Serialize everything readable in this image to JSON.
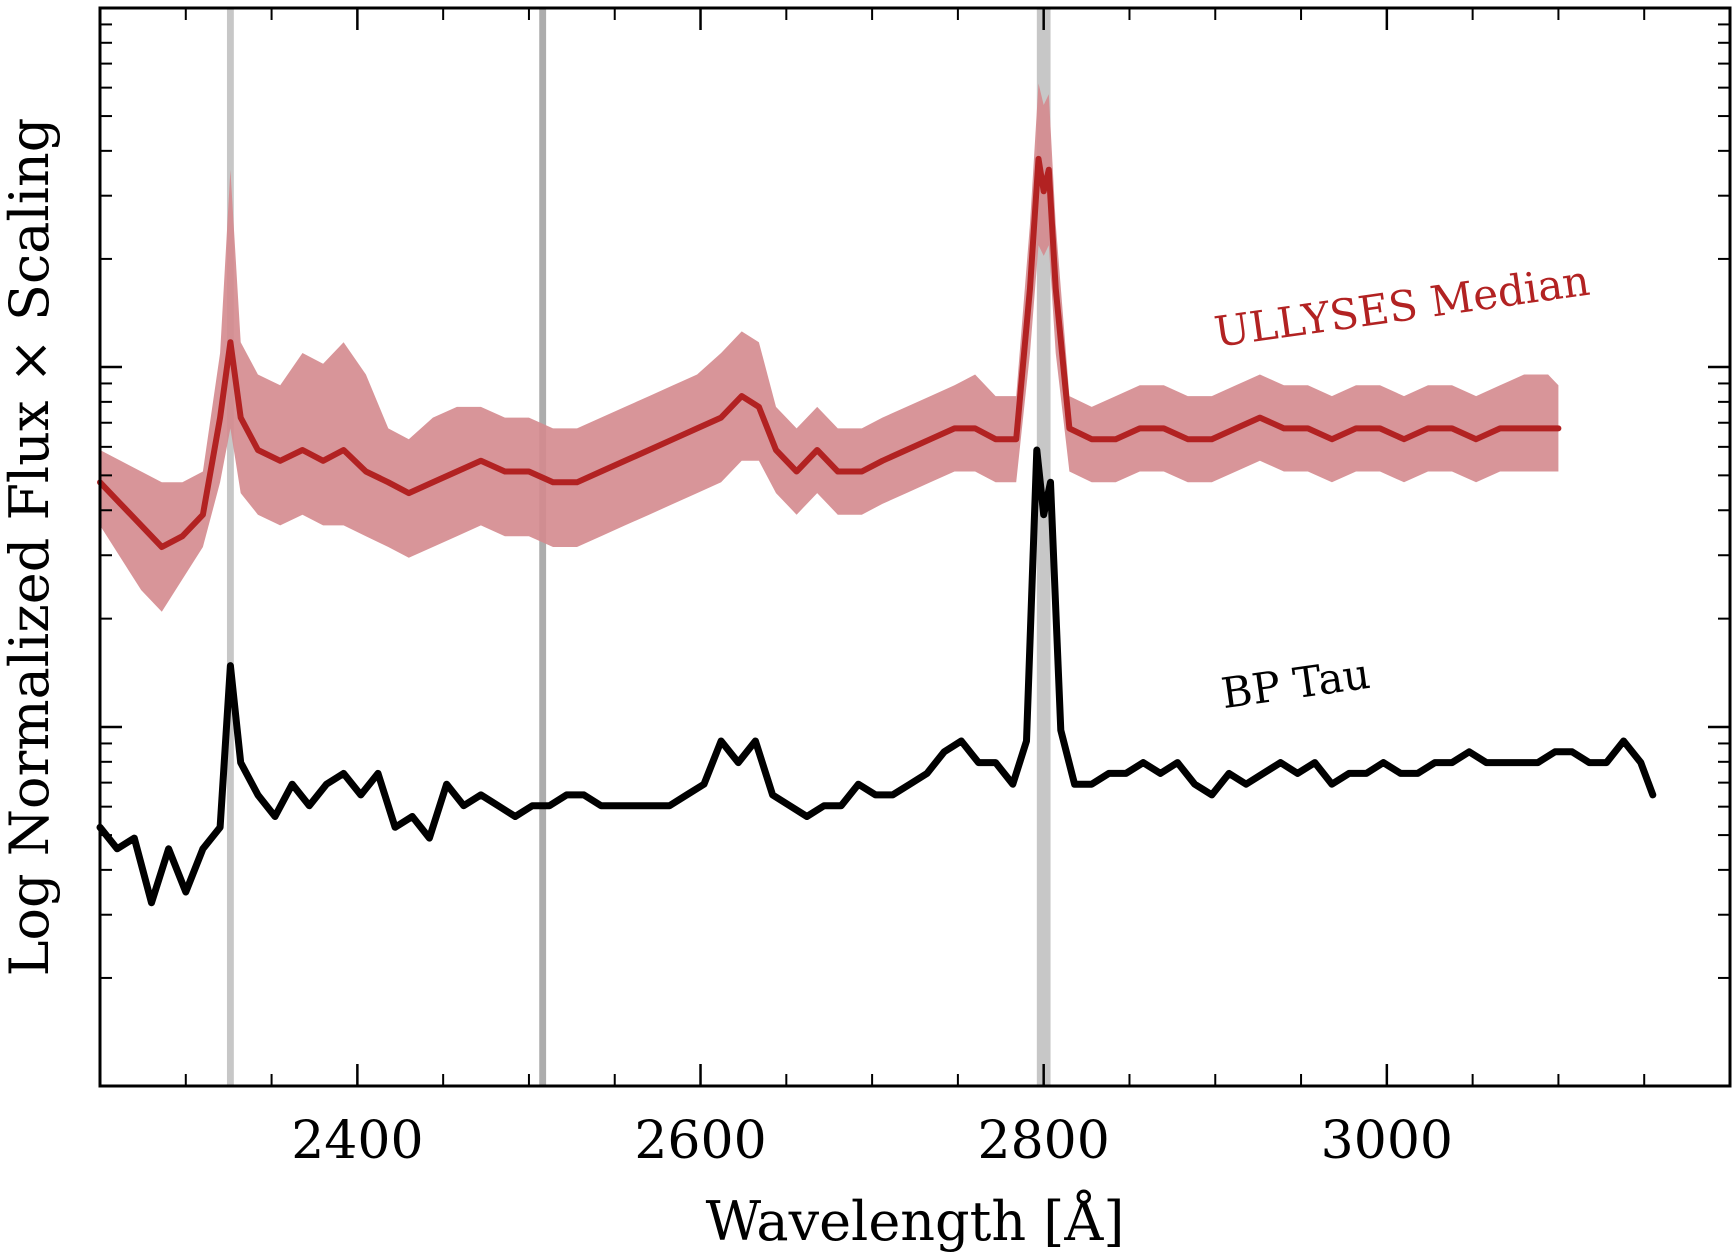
{
  "chart_data": {
    "type": "line",
    "xlabel": "Wavelength [Å]",
    "ylabel": "Log Normalized Flux × Scaling",
    "xlim": [
      2250,
      3200
    ],
    "ylim": [
      0,
      10
    ],
    "y_scale": "log",
    "y_tick_labels": "none",
    "x_ticks": [
      2400,
      2600,
      2800,
      3000
    ],
    "x_tick_labels": [
      "2400",
      "2600",
      "2800",
      "3000"
    ],
    "grid": false,
    "vertical_bands": [
      {
        "x_min": 2324,
        "x_max": 2328,
        "color": "#bdbdbd"
      },
      {
        "x_min": 2506,
        "x_max": 2510,
        "color": "#9e9e9e"
      },
      {
        "x_min": 2796,
        "x_max": 2804,
        "color": "#bdbdbd"
      }
    ],
    "series": [
      {
        "name": "ULLYSES Median",
        "color": "#b22222",
        "band_color": "#d48a8e",
        "points": [
          [
            2250,
            5.6
          ],
          [
            2262,
            5.4
          ],
          [
            2274,
            5.2
          ],
          [
            2286,
            5.0
          ],
          [
            2298,
            5.1
          ],
          [
            2310,
            5.3
          ],
          [
            2320,
            6.2
          ],
          [
            2326,
            6.9
          ],
          [
            2332,
            6.2
          ],
          [
            2342,
            5.9
          ],
          [
            2355,
            5.8
          ],
          [
            2368,
            5.9
          ],
          [
            2380,
            5.8
          ],
          [
            2392,
            5.9
          ],
          [
            2405,
            5.7
          ],
          [
            2418,
            5.6
          ],
          [
            2430,
            5.5
          ],
          [
            2444,
            5.6
          ],
          [
            2458,
            5.7
          ],
          [
            2472,
            5.8
          ],
          [
            2486,
            5.7
          ],
          [
            2500,
            5.7
          ],
          [
            2514,
            5.6
          ],
          [
            2528,
            5.6
          ],
          [
            2542,
            5.7
          ],
          [
            2556,
            5.8
          ],
          [
            2570,
            5.9
          ],
          [
            2584,
            6.0
          ],
          [
            2598,
            6.1
          ],
          [
            2612,
            6.2
          ],
          [
            2624,
            6.4
          ],
          [
            2634,
            6.3
          ],
          [
            2644,
            5.9
          ],
          [
            2656,
            5.7
          ],
          [
            2668,
            5.9
          ],
          [
            2680,
            5.7
          ],
          [
            2694,
            5.7
          ],
          [
            2706,
            5.8
          ],
          [
            2720,
            5.9
          ],
          [
            2734,
            6.0
          ],
          [
            2748,
            6.1
          ],
          [
            2760,
            6.1
          ],
          [
            2772,
            6.0
          ],
          [
            2784,
            6.0
          ],
          [
            2792,
            7.4
          ],
          [
            2797,
            8.6
          ],
          [
            2800,
            8.3
          ],
          [
            2803,
            8.5
          ],
          [
            2807,
            7.4
          ],
          [
            2815,
            6.1
          ],
          [
            2828,
            6.0
          ],
          [
            2842,
            6.0
          ],
          [
            2856,
            6.1
          ],
          [
            2870,
            6.1
          ],
          [
            2884,
            6.0
          ],
          [
            2898,
            6.0
          ],
          [
            2912,
            6.1
          ],
          [
            2926,
            6.2
          ],
          [
            2940,
            6.1
          ],
          [
            2954,
            6.1
          ],
          [
            2968,
            6.0
          ],
          [
            2982,
            6.1
          ],
          [
            2996,
            6.1
          ],
          [
            3010,
            6.0
          ],
          [
            3024,
            6.1
          ],
          [
            3038,
            6.1
          ],
          [
            3052,
            6.0
          ],
          [
            3066,
            6.1
          ],
          [
            3080,
            6.1
          ],
          [
            3094,
            6.1
          ],
          [
            3100,
            6.1
          ]
        ],
        "band_lower": [
          [
            2250,
            5.2
          ],
          [
            2262,
            4.9
          ],
          [
            2274,
            4.6
          ],
          [
            2286,
            4.4
          ],
          [
            2298,
            4.7
          ],
          [
            2310,
            5.0
          ],
          [
            2320,
            5.6
          ],
          [
            2326,
            6.1
          ],
          [
            2332,
            5.5
          ],
          [
            2342,
            5.3
          ],
          [
            2355,
            5.2
          ],
          [
            2368,
            5.3
          ],
          [
            2380,
            5.2
          ],
          [
            2392,
            5.2
          ],
          [
            2405,
            5.1
          ],
          [
            2418,
            5.0
          ],
          [
            2430,
            4.9
          ],
          [
            2444,
            5.0
          ],
          [
            2458,
            5.1
          ],
          [
            2472,
            5.2
          ],
          [
            2486,
            5.1
          ],
          [
            2500,
            5.1
          ],
          [
            2514,
            5.0
          ],
          [
            2528,
            5.0
          ],
          [
            2542,
            5.1
          ],
          [
            2556,
            5.2
          ],
          [
            2570,
            5.3
          ],
          [
            2584,
            5.4
          ],
          [
            2598,
            5.5
          ],
          [
            2612,
            5.6
          ],
          [
            2624,
            5.8
          ],
          [
            2634,
            5.8
          ],
          [
            2644,
            5.5
          ],
          [
            2656,
            5.3
          ],
          [
            2668,
            5.5
          ],
          [
            2680,
            5.3
          ],
          [
            2694,
            5.3
          ],
          [
            2706,
            5.4
          ],
          [
            2720,
            5.5
          ],
          [
            2734,
            5.6
          ],
          [
            2748,
            5.7
          ],
          [
            2760,
            5.7
          ],
          [
            2772,
            5.6
          ],
          [
            2784,
            5.6
          ],
          [
            2792,
            6.8
          ],
          [
            2797,
            7.8
          ],
          [
            2800,
            7.7
          ],
          [
            2803,
            7.8
          ],
          [
            2807,
            6.8
          ],
          [
            2815,
            5.7
          ],
          [
            2828,
            5.6
          ],
          [
            2842,
            5.6
          ],
          [
            2856,
            5.7
          ],
          [
            2870,
            5.7
          ],
          [
            2884,
            5.6
          ],
          [
            2898,
            5.6
          ],
          [
            2912,
            5.7
          ],
          [
            2926,
            5.8
          ],
          [
            2940,
            5.7
          ],
          [
            2954,
            5.7
          ],
          [
            2968,
            5.6
          ],
          [
            2982,
            5.7
          ],
          [
            2996,
            5.7
          ],
          [
            3010,
            5.6
          ],
          [
            3024,
            5.7
          ],
          [
            3038,
            5.7
          ],
          [
            3052,
            5.6
          ],
          [
            3066,
            5.7
          ],
          [
            3080,
            5.7
          ],
          [
            3094,
            5.7
          ],
          [
            3100,
            5.7
          ]
        ],
        "band_upper": [
          [
            2250,
            5.9
          ],
          [
            2262,
            5.8
          ],
          [
            2274,
            5.7
          ],
          [
            2286,
            5.6
          ],
          [
            2298,
            5.6
          ],
          [
            2310,
            5.7
          ],
          [
            2320,
            6.8
          ],
          [
            2326,
            8.5
          ],
          [
            2332,
            6.9
          ],
          [
            2342,
            6.6
          ],
          [
            2355,
            6.5
          ],
          [
            2368,
            6.8
          ],
          [
            2380,
            6.7
          ],
          [
            2392,
            6.9
          ],
          [
            2405,
            6.6
          ],
          [
            2418,
            6.1
          ],
          [
            2430,
            6.0
          ],
          [
            2444,
            6.2
          ],
          [
            2458,
            6.3
          ],
          [
            2472,
            6.3
          ],
          [
            2486,
            6.2
          ],
          [
            2500,
            6.2
          ],
          [
            2514,
            6.1
          ],
          [
            2528,
            6.1
          ],
          [
            2542,
            6.2
          ],
          [
            2556,
            6.3
          ],
          [
            2570,
            6.4
          ],
          [
            2584,
            6.5
          ],
          [
            2598,
            6.6
          ],
          [
            2612,
            6.8
          ],
          [
            2624,
            7.0
          ],
          [
            2634,
            6.9
          ],
          [
            2644,
            6.3
          ],
          [
            2656,
            6.1
          ],
          [
            2668,
            6.3
          ],
          [
            2680,
            6.1
          ],
          [
            2694,
            6.1
          ],
          [
            2706,
            6.2
          ],
          [
            2720,
            6.3
          ],
          [
            2734,
            6.4
          ],
          [
            2748,
            6.5
          ],
          [
            2760,
            6.6
          ],
          [
            2772,
            6.4
          ],
          [
            2784,
            6.4
          ],
          [
            2792,
            8.0
          ],
          [
            2797,
            9.3
          ],
          [
            2800,
            9.1
          ],
          [
            2803,
            9.2
          ],
          [
            2807,
            8.0
          ],
          [
            2815,
            6.4
          ],
          [
            2828,
            6.3
          ],
          [
            2842,
            6.4
          ],
          [
            2856,
            6.5
          ],
          [
            2870,
            6.5
          ],
          [
            2884,
            6.4
          ],
          [
            2898,
            6.4
          ],
          [
            2912,
            6.5
          ],
          [
            2926,
            6.6
          ],
          [
            2940,
            6.5
          ],
          [
            2954,
            6.5
          ],
          [
            2968,
            6.4
          ],
          [
            2982,
            6.5
          ],
          [
            2996,
            6.5
          ],
          [
            3010,
            6.4
          ],
          [
            3024,
            6.5
          ],
          [
            3038,
            6.5
          ],
          [
            3052,
            6.4
          ],
          [
            3066,
            6.5
          ],
          [
            3080,
            6.6
          ],
          [
            3094,
            6.6
          ],
          [
            3100,
            6.5
          ]
        ]
      },
      {
        "name": "BP Tau",
        "color": "#000000",
        "points": [
          [
            2250,
            2.4
          ],
          [
            2260,
            2.2
          ],
          [
            2270,
            2.3
          ],
          [
            2280,
            1.7
          ],
          [
            2290,
            2.2
          ],
          [
            2300,
            1.8
          ],
          [
            2310,
            2.2
          ],
          [
            2320,
            2.4
          ],
          [
            2326,
            3.9
          ],
          [
            2332,
            3.0
          ],
          [
            2342,
            2.7
          ],
          [
            2352,
            2.5
          ],
          [
            2362,
            2.8
          ],
          [
            2372,
            2.6
          ],
          [
            2382,
            2.8
          ],
          [
            2392,
            2.9
          ],
          [
            2402,
            2.7
          ],
          [
            2412,
            2.9
          ],
          [
            2422,
            2.4
          ],
          [
            2432,
            2.5
          ],
          [
            2442,
            2.3
          ],
          [
            2452,
            2.8
          ],
          [
            2462,
            2.6
          ],
          [
            2472,
            2.7
          ],
          [
            2482,
            2.6
          ],
          [
            2492,
            2.5
          ],
          [
            2502,
            2.6
          ],
          [
            2512,
            2.6
          ],
          [
            2522,
            2.7
          ],
          [
            2532,
            2.7
          ],
          [
            2542,
            2.6
          ],
          [
            2552,
            2.6
          ],
          [
            2562,
            2.6
          ],
          [
            2572,
            2.6
          ],
          [
            2582,
            2.6
          ],
          [
            2592,
            2.7
          ],
          [
            2602,
            2.8
          ],
          [
            2612,
            3.2
          ],
          [
            2622,
            3.0
          ],
          [
            2632,
            3.2
          ],
          [
            2642,
            2.7
          ],
          [
            2652,
            2.6
          ],
          [
            2662,
            2.5
          ],
          [
            2672,
            2.6
          ],
          [
            2682,
            2.6
          ],
          [
            2692,
            2.8
          ],
          [
            2702,
            2.7
          ],
          [
            2712,
            2.7
          ],
          [
            2722,
            2.8
          ],
          [
            2732,
            2.9
          ],
          [
            2742,
            3.1
          ],
          [
            2752,
            3.2
          ],
          [
            2762,
            3.0
          ],
          [
            2772,
            3.0
          ],
          [
            2782,
            2.8
          ],
          [
            2790,
            3.2
          ],
          [
            2796,
            5.9
          ],
          [
            2800,
            5.3
          ],
          [
            2804,
            5.6
          ],
          [
            2810,
            3.3
          ],
          [
            2818,
            2.8
          ],
          [
            2828,
            2.8
          ],
          [
            2838,
            2.9
          ],
          [
            2848,
            2.9
          ],
          [
            2858,
            3.0
          ],
          [
            2868,
            2.9
          ],
          [
            2878,
            3.0
          ],
          [
            2888,
            2.8
          ],
          [
            2898,
            2.7
          ],
          [
            2908,
            2.9
          ],
          [
            2918,
            2.8
          ],
          [
            2928,
            2.9
          ],
          [
            2938,
            3.0
          ],
          [
            2948,
            2.9
          ],
          [
            2958,
            3.0
          ],
          [
            2968,
            2.8
          ],
          [
            2978,
            2.9
          ],
          [
            2988,
            2.9
          ],
          [
            2998,
            3.0
          ],
          [
            3008,
            2.9
          ],
          [
            3018,
            2.9
          ],
          [
            3028,
            3.0
          ],
          [
            3038,
            3.0
          ],
          [
            3048,
            3.1
          ],
          [
            3058,
            3.0
          ],
          [
            3068,
            3.0
          ],
          [
            3078,
            3.0
          ],
          [
            3088,
            3.0
          ],
          [
            3098,
            3.1
          ],
          [
            3108,
            3.1
          ],
          [
            3118,
            3.0
          ],
          [
            3128,
            3.0
          ],
          [
            3138,
            3.2
          ],
          [
            3148,
            3.0
          ],
          [
            3155,
            2.7
          ]
        ]
      }
    ],
    "annotations": [
      {
        "text": "ULLYSES Median",
        "color": "#b22222",
        "x": 3010,
        "y": 7.1
      },
      {
        "text": "BP Tau",
        "color": "#000000",
        "x": 2948,
        "y": 3.6
      }
    ]
  }
}
